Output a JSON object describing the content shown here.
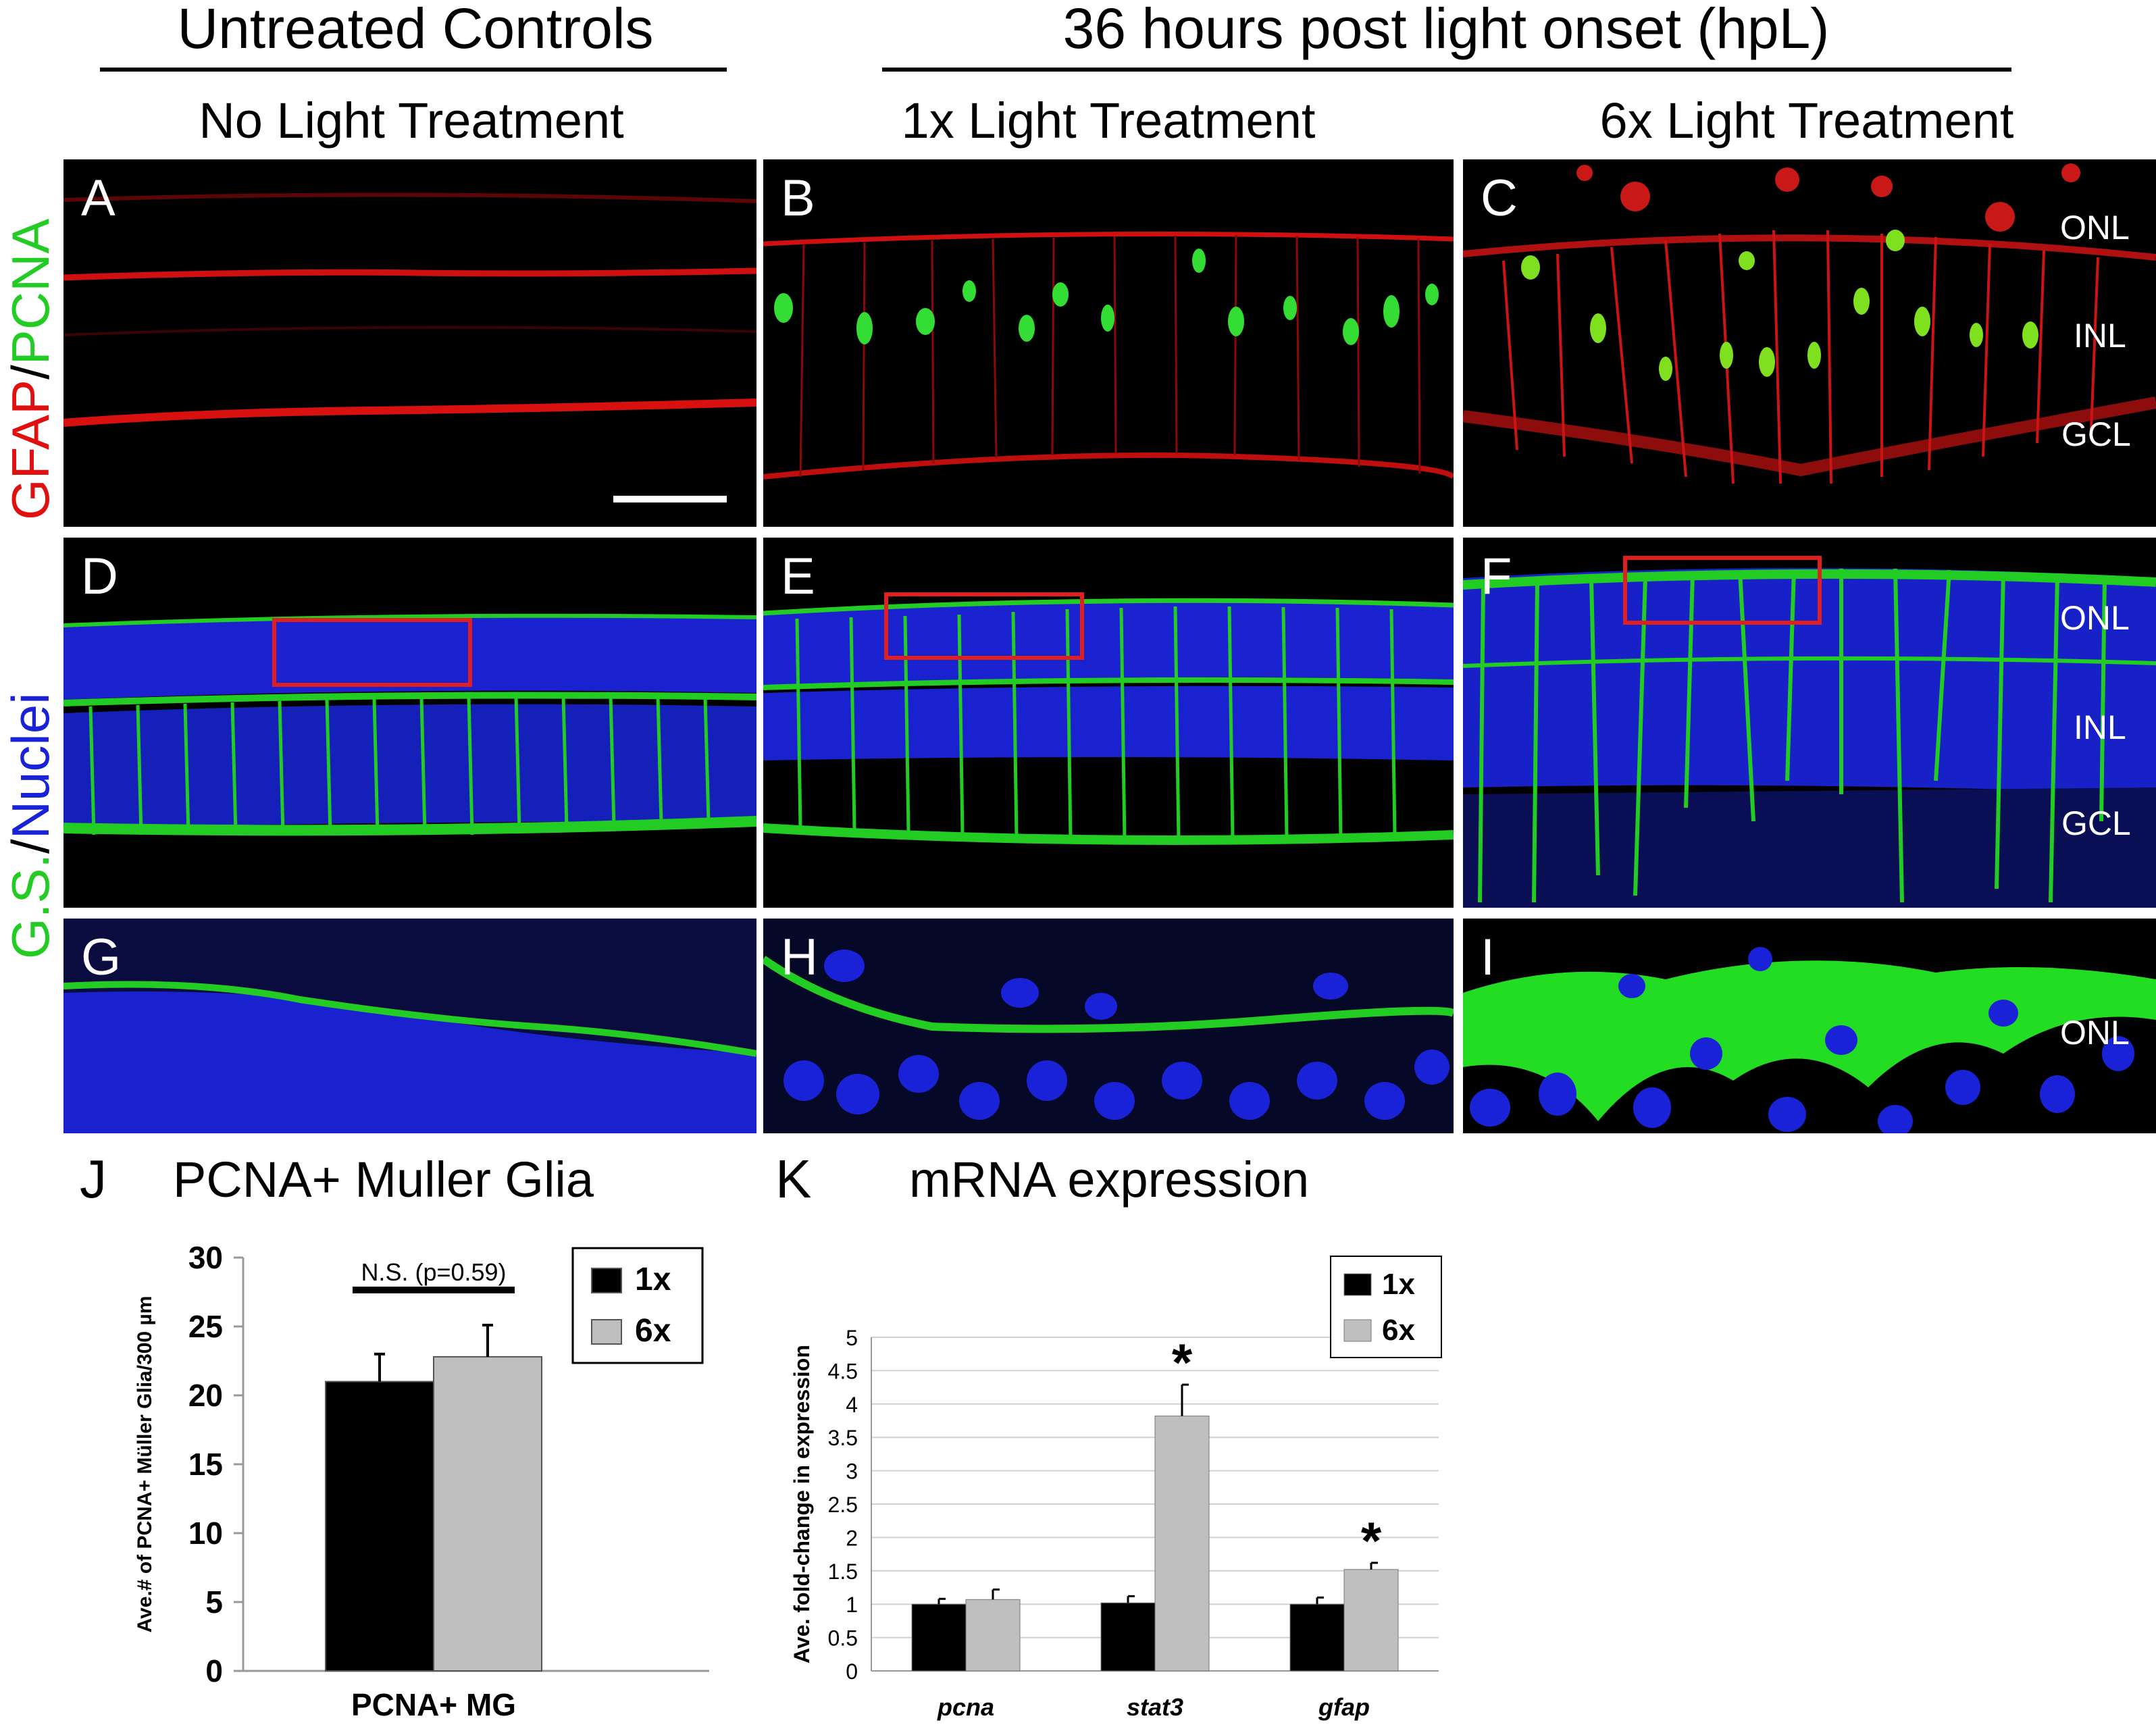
{
  "headers": {
    "untreated": "Untreated Controls",
    "post": "36 hours post light onset (hpL)",
    "col1": "No Light Treatment",
    "col2": "1x Light Treatment",
    "col3": "6x Light Treatment"
  },
  "row_labels": {
    "r1_a": "GFAP",
    "r1_sep": "/",
    "r1_b": "PCNA",
    "r2_a": "G.S.",
    "r2_sep": "/",
    "r2_b": "Nuclei"
  },
  "panels": {
    "A": "A",
    "B": "B",
    "C": "C",
    "D": "D",
    "E": "E",
    "F": "F",
    "G": "G",
    "H": "H",
    "I": "I",
    "J": "J",
    "K": "K"
  },
  "layers": {
    "onl": "ONL",
    "inl": "INL",
    "gcl": "GCL"
  },
  "colors": {
    "gfap_red": "#e01010",
    "pcna_green": "#22dd22",
    "nuclei_blue": "#1a22d8",
    "box_red": "#e02020",
    "bar_black": "#000000",
    "bar_gray": "#bfbfbf"
  },
  "chart_data": [
    {
      "type": "bar",
      "title": "PCNA+ Muller Glia",
      "ylabel": "Ave.# of PCNA+ Müller Glia/300 µm",
      "xlabel": "PCNA+ MG",
      "categories": [
        "PCNA+ MG"
      ],
      "series": [
        {
          "name": "1x",
          "values": [
            21
          ],
          "errors": [
            2
          ]
        },
        {
          "name": "6x",
          "values": [
            22.8
          ],
          "errors": [
            2.3
          ]
        }
      ],
      "ylim": [
        0,
        30
      ],
      "yticks": [
        "0",
        "5",
        "10",
        "15",
        "20",
        "25",
        "30"
      ],
      "annotation": "N.S. (p=0.59)",
      "legend_position": "top-right",
      "grid": false
    },
    {
      "type": "bar",
      "title": "mRNA expression",
      "ylabel": "Ave. fold-change in expression",
      "categories": [
        "pcna",
        "stat3",
        "gfap"
      ],
      "series": [
        {
          "name": "1x",
          "values": [
            1.0,
            1.02,
            1.0
          ],
          "errors": [
            0.08,
            0.1,
            0.1
          ]
        },
        {
          "name": "6x",
          "values": [
            1.07,
            3.82,
            1.52
          ],
          "errors": [
            0.15,
            0.47,
            0.1
          ]
        }
      ],
      "significance": [
        "",
        "*",
        "*"
      ],
      "ylim": [
        0,
        5
      ],
      "yticks": [
        "0",
        "0.5",
        "1",
        "1.5",
        "2",
        "2.5",
        "3",
        "3.5",
        "4",
        "4.5",
        "5"
      ],
      "legend_position": "top-right",
      "grid": true
    }
  ]
}
